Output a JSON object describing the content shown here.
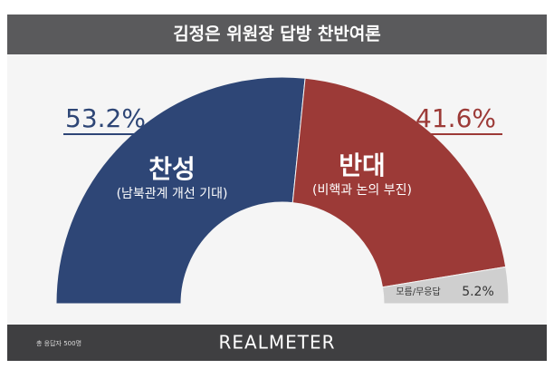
{
  "chart_data": {
    "type": "pie",
    "title": "김정은 위원장 답방 찬반여론",
    "categories": [
      "찬성",
      "반대",
      "모름/무응답"
    ],
    "descriptions": [
      "(남북관계 개선 기대)",
      "(비핵과 논의 부진)",
      null
    ],
    "values": [
      53.2,
      41.6,
      5.2
    ],
    "value_labels": [
      "53.2%",
      "41.6%",
      "5.2%"
    ],
    "colors": [
      "#2e4676",
      "#9c3a37",
      "#cfcfcf"
    ],
    "note": "총 응답자 500명",
    "source": "REALMETER"
  }
}
